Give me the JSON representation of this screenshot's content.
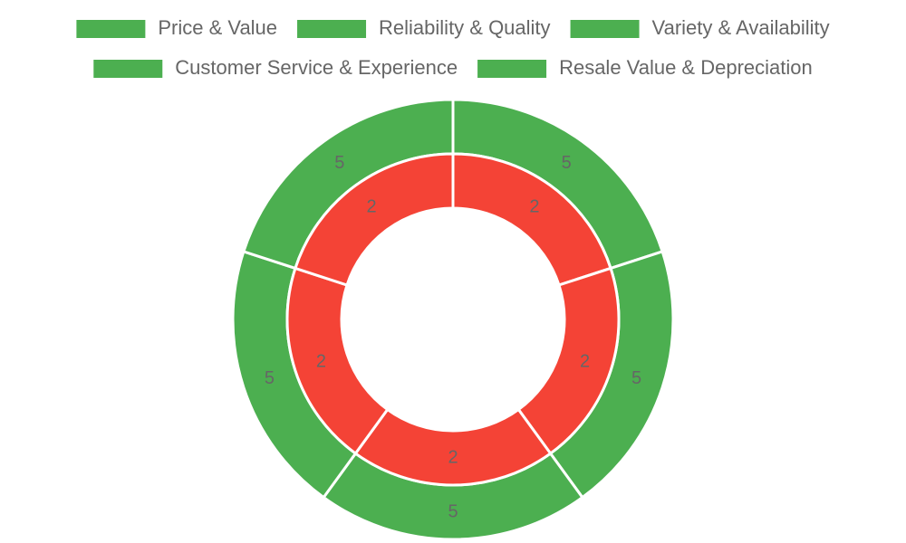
{
  "chart_data": {
    "type": "doughnut",
    "categories": [
      "Price & Value",
      "Reliability & Quality",
      "Variety & Availability",
      "Customer Service & Experience",
      "Resale Value & Depreciation"
    ],
    "series": [
      {
        "color": "#4caf50",
        "values": [
          5,
          5,
          5,
          5,
          5
        ]
      },
      {
        "color": "#f44336",
        "values": [
          2,
          2,
          2,
          2,
          2
        ]
      }
    ],
    "legend": "top"
  }
}
